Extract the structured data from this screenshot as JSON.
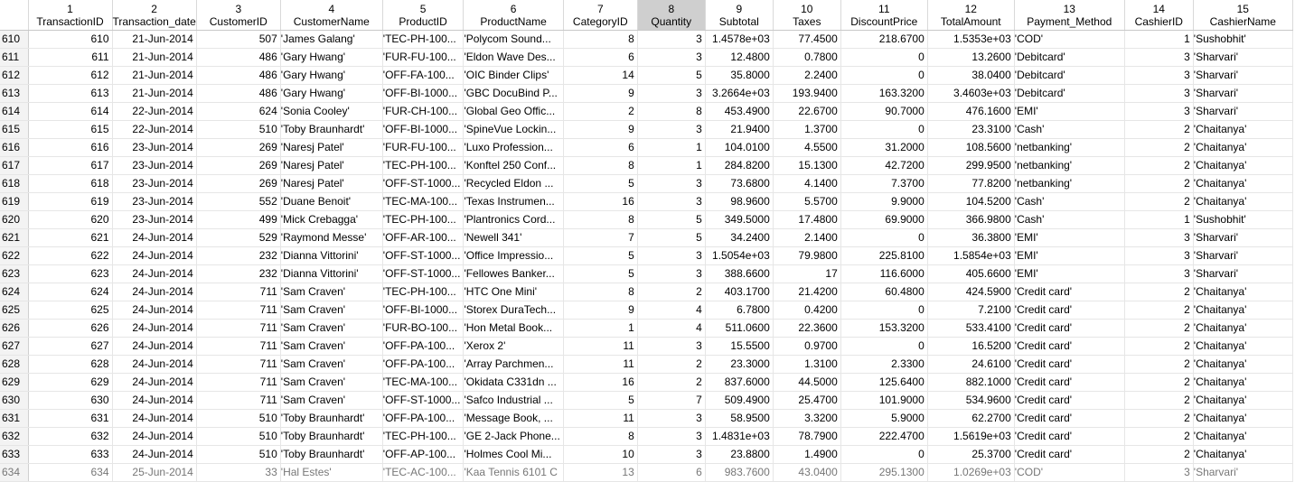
{
  "columns": [
    {
      "num": "1",
      "name": "TransactionID",
      "w": 93
    },
    {
      "num": "2",
      "name": "Transaction_date",
      "w": 93
    },
    {
      "num": "3",
      "name": "CustomerID",
      "w": 93
    },
    {
      "num": "4",
      "name": "CustomerName",
      "w": 113
    },
    {
      "num": "5",
      "name": "ProductID",
      "w": 82
    },
    {
      "num": "6",
      "name": "ProductName",
      "w": 107
    },
    {
      "num": "7",
      "name": "CategoryID",
      "w": 82
    },
    {
      "num": "8",
      "name": "Quantity",
      "w": 75
    },
    {
      "num": "9",
      "name": "Subtotal",
      "w": 75
    },
    {
      "num": "10",
      "name": "Taxes",
      "w": 75
    },
    {
      "num": "11",
      "name": "DiscountPrice",
      "w": 96
    },
    {
      "num": "12",
      "name": "TotalAmount",
      "w": 96
    },
    {
      "num": "13",
      "name": "Payment_Method",
      "w": 122
    },
    {
      "num": "14",
      "name": "CashierID",
      "w": 76
    },
    {
      "num": "15",
      "name": "CashierName",
      "w": 110
    }
  ],
  "selected_column": 8,
  "rows": [
    {
      "rh": "610",
      "c": [
        "610",
        "21-Jun-2014",
        "507",
        "'James Galang'",
        "'TEC-PH-100...",
        "'Polycom Sound...",
        "8",
        "3",
        "1.4578e+03",
        "77.4500",
        "218.6700",
        "1.5353e+03",
        "'COD'",
        "1",
        "'Sushobhit'"
      ]
    },
    {
      "rh": "611",
      "c": [
        "611",
        "21-Jun-2014",
        "486",
        "'Gary Hwang'",
        "'FUR-FU-100...",
        "'Eldon Wave Des...",
        "6",
        "3",
        "12.4800",
        "0.7800",
        "0",
        "13.2600",
        "'Debitcard'",
        "3",
        "'Sharvari'"
      ]
    },
    {
      "rh": "612",
      "c": [
        "612",
        "21-Jun-2014",
        "486",
        "'Gary Hwang'",
        "'OFF-FA-100...",
        "'OIC Binder Clips'",
        "14",
        "5",
        "35.8000",
        "2.2400",
        "0",
        "38.0400",
        "'Debitcard'",
        "3",
        "'Sharvari'"
      ]
    },
    {
      "rh": "613",
      "c": [
        "613",
        "21-Jun-2014",
        "486",
        "'Gary Hwang'",
        "'OFF-BI-1000...",
        "'GBC DocuBind P...",
        "9",
        "3",
        "3.2664e+03",
        "193.9400",
        "163.3200",
        "3.4603e+03",
        "'Debitcard'",
        "3",
        "'Sharvari'"
      ]
    },
    {
      "rh": "614",
      "c": [
        "614",
        "22-Jun-2014",
        "624",
        "'Sonia Cooley'",
        "'FUR-CH-100...",
        "'Global Geo Offic...",
        "2",
        "8",
        "453.4900",
        "22.6700",
        "90.7000",
        "476.1600",
        "'EMI'",
        "3",
        "'Sharvari'"
      ]
    },
    {
      "rh": "615",
      "c": [
        "615",
        "22-Jun-2014",
        "510",
        "'Toby Braunhardt'",
        "'OFF-BI-1000...",
        "'SpineVue Lockin...",
        "9",
        "3",
        "21.9400",
        "1.3700",
        "0",
        "23.3100",
        "'Cash'",
        "2",
        "'Chaitanya'"
      ]
    },
    {
      "rh": "616",
      "c": [
        "616",
        "23-Jun-2014",
        "269",
        "'Naresj Patel'",
        "'FUR-FU-100...",
        "'Luxo Profession...",
        "6",
        "1",
        "104.0100",
        "4.5500",
        "31.2000",
        "108.5600",
        "'netbanking'",
        "2",
        "'Chaitanya'"
      ]
    },
    {
      "rh": "617",
      "c": [
        "617",
        "23-Jun-2014",
        "269",
        "'Naresj Patel'",
        "'TEC-PH-100...",
        "'Konftel 250 Conf...",
        "8",
        "1",
        "284.8200",
        "15.1300",
        "42.7200",
        "299.9500",
        "'netbanking'",
        "2",
        "'Chaitanya'"
      ]
    },
    {
      "rh": "618",
      "c": [
        "618",
        "23-Jun-2014",
        "269",
        "'Naresj Patel'",
        "'OFF-ST-1000...",
        "'Recycled Eldon ...",
        "5",
        "3",
        "73.6800",
        "4.1400",
        "7.3700",
        "77.8200",
        "'netbanking'",
        "2",
        "'Chaitanya'"
      ]
    },
    {
      "rh": "619",
      "c": [
        "619",
        "23-Jun-2014",
        "552",
        "'Duane Benoit'",
        "'TEC-MA-100...",
        "'Texas Instrumen...",
        "16",
        "3",
        "98.9600",
        "5.5700",
        "9.9000",
        "104.5200",
        "'Cash'",
        "2",
        "'Chaitanya'"
      ]
    },
    {
      "rh": "620",
      "c": [
        "620",
        "23-Jun-2014",
        "499",
        "'Mick Crebagga'",
        "'TEC-PH-100...",
        "'Plantronics Cord...",
        "8",
        "5",
        "349.5000",
        "17.4800",
        "69.9000",
        "366.9800",
        "'Cash'",
        "1",
        "'Sushobhit'"
      ]
    },
    {
      "rh": "621",
      "c": [
        "621",
        "24-Jun-2014",
        "529",
        "'Raymond Messe'",
        "'OFF-AR-100...",
        "'Newell 341'",
        "7",
        "5",
        "34.2400",
        "2.1400",
        "0",
        "36.3800",
        "'EMI'",
        "3",
        "'Sharvari'"
      ]
    },
    {
      "rh": "622",
      "c": [
        "622",
        "24-Jun-2014",
        "232",
        "'Dianna Vittorini'",
        "'OFF-ST-1000...",
        "'Office Impressio...",
        "5",
        "3",
        "1.5054e+03",
        "79.9800",
        "225.8100",
        "1.5854e+03",
        "'EMI'",
        "3",
        "'Sharvari'"
      ]
    },
    {
      "rh": "623",
      "c": [
        "623",
        "24-Jun-2014",
        "232",
        "'Dianna Vittorini'",
        "'OFF-ST-1000...",
        "'Fellowes Banker...",
        "5",
        "3",
        "388.6600",
        "17",
        "116.6000",
        "405.6600",
        "'EMI'",
        "3",
        "'Sharvari'"
      ]
    },
    {
      "rh": "624",
      "c": [
        "624",
        "24-Jun-2014",
        "711",
        "'Sam Craven'",
        "'TEC-PH-100...",
        "'HTC One Mini'",
        "8",
        "2",
        "403.1700",
        "21.4200",
        "60.4800",
        "424.5900",
        "'Credit card'",
        "2",
        "'Chaitanya'"
      ]
    },
    {
      "rh": "625",
      "c": [
        "625",
        "24-Jun-2014",
        "711",
        "'Sam Craven'",
        "'OFF-BI-1000...",
        "'Storex DuraTech...",
        "9",
        "4",
        "6.7800",
        "0.4200",
        "0",
        "7.2100",
        "'Credit card'",
        "2",
        "'Chaitanya'"
      ]
    },
    {
      "rh": "626",
      "c": [
        "626",
        "24-Jun-2014",
        "711",
        "'Sam Craven'",
        "'FUR-BO-100...",
        "'Hon Metal Book...",
        "1",
        "4",
        "511.0600",
        "22.3600",
        "153.3200",
        "533.4100",
        "'Credit card'",
        "2",
        "'Chaitanya'"
      ]
    },
    {
      "rh": "627",
      "c": [
        "627",
        "24-Jun-2014",
        "711",
        "'Sam Craven'",
        "'OFF-PA-100...",
        "'Xerox 2'",
        "11",
        "3",
        "15.5500",
        "0.9700",
        "0",
        "16.5200",
        "'Credit card'",
        "2",
        "'Chaitanya'"
      ]
    },
    {
      "rh": "628",
      "c": [
        "628",
        "24-Jun-2014",
        "711",
        "'Sam Craven'",
        "'OFF-PA-100...",
        "'Array Parchmen...",
        "11",
        "2",
        "23.3000",
        "1.3100",
        "2.3300",
        "24.6100",
        "'Credit card'",
        "2",
        "'Chaitanya'"
      ]
    },
    {
      "rh": "629",
      "c": [
        "629",
        "24-Jun-2014",
        "711",
        "'Sam Craven'",
        "'TEC-MA-100...",
        "'Okidata C331dn ...",
        "16",
        "2",
        "837.6000",
        "44.5000",
        "125.6400",
        "882.1000",
        "'Credit card'",
        "2",
        "'Chaitanya'"
      ]
    },
    {
      "rh": "630",
      "c": [
        "630",
        "24-Jun-2014",
        "711",
        "'Sam Craven'",
        "'OFF-ST-1000...",
        "'Safco Industrial ...",
        "5",
        "7",
        "509.4900",
        "25.4700",
        "101.9000",
        "534.9600",
        "'Credit card'",
        "2",
        "'Chaitanya'"
      ]
    },
    {
      "rh": "631",
      "c": [
        "631",
        "24-Jun-2014",
        "510",
        "'Toby Braunhardt'",
        "'OFF-PA-100...",
        "'Message Book, ...",
        "11",
        "3",
        "58.9500",
        "3.3200",
        "5.9000",
        "62.2700",
        "'Credit card'",
        "2",
        "'Chaitanya'"
      ]
    },
    {
      "rh": "632",
      "c": [
        "632",
        "24-Jun-2014",
        "510",
        "'Toby Braunhardt'",
        "'TEC-PH-100...",
        "'GE 2-Jack Phone...",
        "8",
        "3",
        "1.4831e+03",
        "78.7900",
        "222.4700",
        "1.5619e+03",
        "'Credit card'",
        "2",
        "'Chaitanya'"
      ]
    },
    {
      "rh": "633",
      "c": [
        "633",
        "24-Jun-2014",
        "510",
        "'Toby Braunhardt'",
        "'OFF-AP-100...",
        "'Holmes Cool Mi...",
        "10",
        "3",
        "23.8800",
        "1.4900",
        "0",
        "25.3700",
        "'Credit card'",
        "2",
        "'Chaitanya'"
      ]
    },
    {
      "rh": "634",
      "c": [
        "634",
        "25-Jun-2014",
        "33",
        "'Hal Estes'",
        "'TEC-AC-100...",
        "'Kaa Tennis 6101 C",
        "13",
        "6",
        "983.7600",
        "43.0400",
        "295.1300",
        "1.0269e+03",
        "'COD'",
        "3",
        "'Sharvari'"
      ]
    }
  ]
}
